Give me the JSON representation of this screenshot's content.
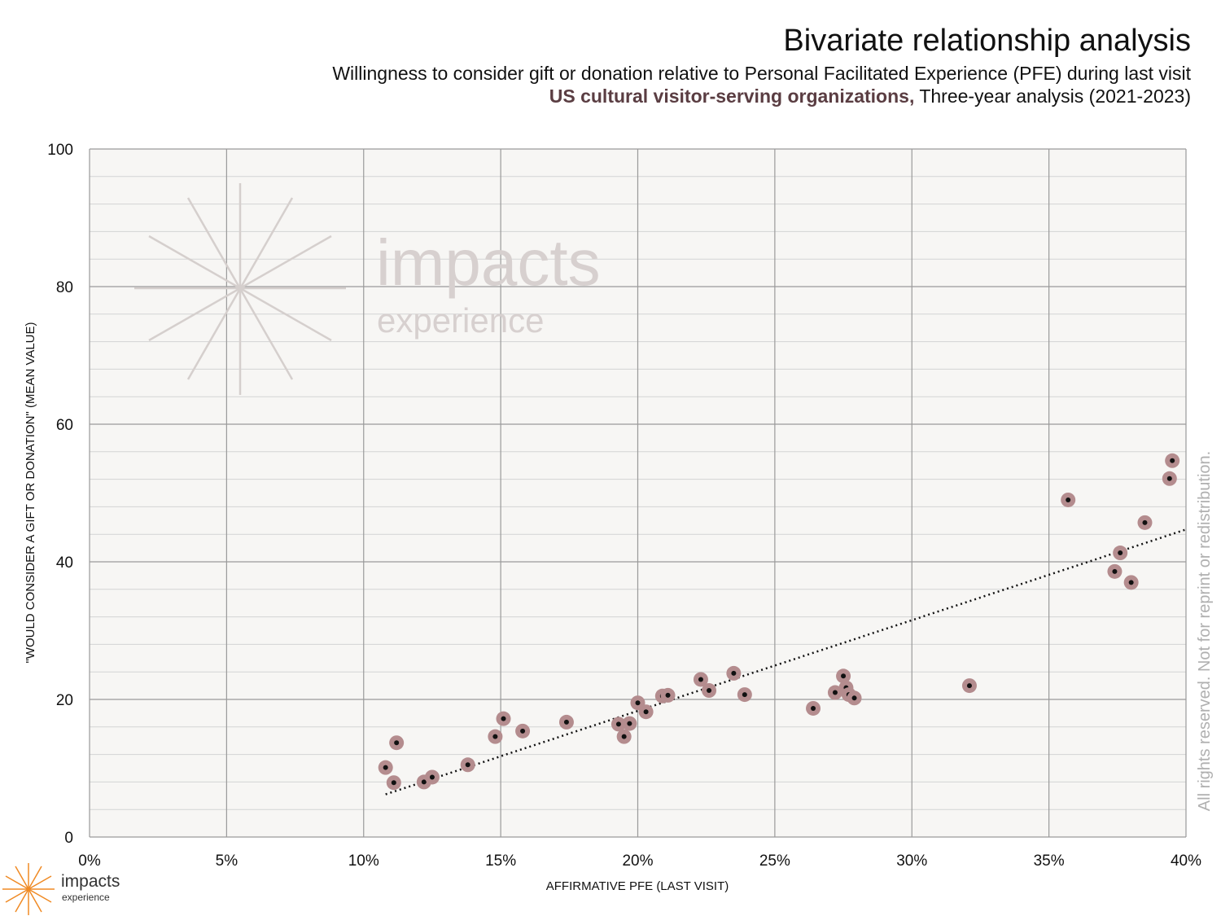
{
  "header": {
    "title": "Bivariate relationship analysis",
    "subtitle": "Willingness to consider gift or donation relative to Personal Facilitated Experience (PFE) during last visit",
    "org_label": "US cultural visitor-serving organizations,",
    "period": " Three-year analysis (2021-2023)"
  },
  "watermark": {
    "line1": "impacts",
    "line2": "experience"
  },
  "rights_notice": "All rights reserved.  Not for reprint or redistribution.",
  "logo": {
    "line1": "impacts",
    "line2": "experience"
  },
  "colors": {
    "marker": "#b48c8e",
    "marker_center": "#111111",
    "plot_bg": "#f7f6f4",
    "accent": "#5a3d42",
    "logo_orange": "#f08a24"
  },
  "chart_data": {
    "type": "scatter",
    "xlabel": "AFFIRMATIVE PFE (LAST VISIT)",
    "ylabel": "\"WOULD CONSIDER A GIFT OR DONATION\" (MEAN VALUE)",
    "xlim": [
      0,
      0.4
    ],
    "ylim": [
      0,
      100
    ],
    "x_ticks": [
      "0%",
      "5%",
      "10%",
      "15%",
      "20%",
      "25%",
      "30%",
      "35%",
      "40%"
    ],
    "y_ticks": [
      "0",
      "20",
      "40",
      "60",
      "80",
      "100"
    ],
    "grid": true,
    "trendline": {
      "style": "dotted",
      "x": [
        0.108,
        0.4
      ],
      "y": [
        6.2,
        44.7
      ]
    },
    "points": [
      {
        "x": 0.108,
        "y": 10.1
      },
      {
        "x": 0.111,
        "y": 7.9
      },
      {
        "x": 0.112,
        "y": 13.7
      },
      {
        "x": 0.122,
        "y": 8.0
      },
      {
        "x": 0.125,
        "y": 8.7
      },
      {
        "x": 0.138,
        "y": 10.5
      },
      {
        "x": 0.148,
        "y": 14.6
      },
      {
        "x": 0.151,
        "y": 17.2
      },
      {
        "x": 0.158,
        "y": 15.4
      },
      {
        "x": 0.174,
        "y": 16.7
      },
      {
        "x": 0.193,
        "y": 16.4
      },
      {
        "x": 0.195,
        "y": 14.6
      },
      {
        "x": 0.197,
        "y": 16.5
      },
      {
        "x": 0.2,
        "y": 19.5
      },
      {
        "x": 0.203,
        "y": 18.2
      },
      {
        "x": 0.209,
        "y": 20.5
      },
      {
        "x": 0.211,
        "y": 20.6
      },
      {
        "x": 0.223,
        "y": 22.9
      },
      {
        "x": 0.226,
        "y": 21.3
      },
      {
        "x": 0.235,
        "y": 23.8
      },
      {
        "x": 0.239,
        "y": 20.7
      },
      {
        "x": 0.264,
        "y": 18.7
      },
      {
        "x": 0.272,
        "y": 21.0
      },
      {
        "x": 0.275,
        "y": 23.4
      },
      {
        "x": 0.276,
        "y": 21.7
      },
      {
        "x": 0.277,
        "y": 20.7
      },
      {
        "x": 0.279,
        "y": 20.2
      },
      {
        "x": 0.321,
        "y": 22.0
      },
      {
        "x": 0.357,
        "y": 49.0
      },
      {
        "x": 0.374,
        "y": 38.6
      },
      {
        "x": 0.376,
        "y": 41.3
      },
      {
        "x": 0.38,
        "y": 37.0
      },
      {
        "x": 0.385,
        "y": 45.7
      },
      {
        "x": 0.394,
        "y": 52.1
      },
      {
        "x": 0.395,
        "y": 54.7
      }
    ]
  }
}
